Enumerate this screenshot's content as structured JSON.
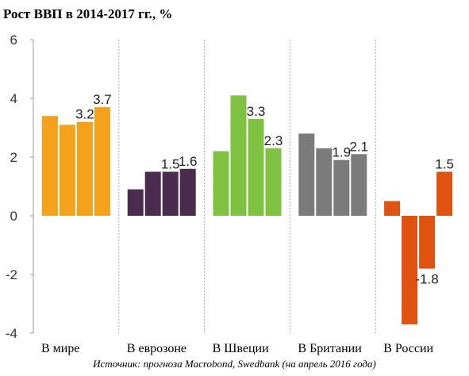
{
  "title": "Рост ВВП в 2014-2017 гг., %",
  "source": "Источник: прогноза Macrobond, Swedbank (на апрель 2016 года)",
  "chart_data": {
    "type": "bar",
    "title": "Рост ВВП в 2014-2017 гг., %",
    "xlabel": "",
    "ylabel": "",
    "ylim": [
      -4,
      6
    ],
    "yticks": [
      "6",
      "4",
      "2",
      "0",
      "-2",
      "-4"
    ],
    "grid": false,
    "groups": [
      {
        "name": "В мире",
        "color": "#f4a11c",
        "values": [
          3.4,
          3.1,
          3.2,
          3.7
        ],
        "labels": [
          "",
          "",
          "3.2",
          "3.7"
        ]
      },
      {
        "name": "В еврозоне",
        "color": "#4a2c4f",
        "values": [
          0.9,
          1.5,
          1.5,
          1.6
        ],
        "labels": [
          "",
          "",
          "1.5",
          "1.6"
        ]
      },
      {
        "name": "В Швеции",
        "color": "#7fc241",
        "values": [
          2.2,
          4.1,
          3.3,
          2.3
        ],
        "labels": [
          "",
          "",
          "3.3",
          "2.3"
        ]
      },
      {
        "name": "В Британии",
        "color": "#7b7b7b",
        "values": [
          2.8,
          2.3,
          1.9,
          2.1
        ],
        "labels": [
          "",
          "",
          "1.9",
          "2.1"
        ]
      },
      {
        "name": "В России",
        "color": "#e0520f",
        "values": [
          0.5,
          -3.7,
          -1.8,
          1.5
        ],
        "labels": [
          "",
          "",
          "-1.8",
          "1.5"
        ]
      }
    ]
  }
}
